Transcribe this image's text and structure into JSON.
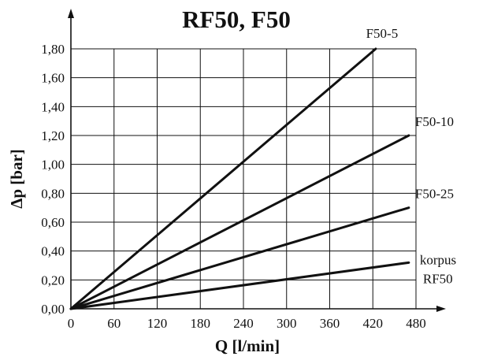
{
  "chart_data": {
    "type": "line",
    "title": "RF50, F50",
    "xlabel": "Q [l/min]",
    "ylabel": "Δp [bar]",
    "xlim": [
      0,
      480
    ],
    "ylim": [
      0,
      1.8
    ],
    "x_ticks": [
      "0",
      "60",
      "120",
      "180",
      "240",
      "300",
      "360",
      "420",
      "480"
    ],
    "y_ticks": [
      "0,00",
      "0,20",
      "0,40",
      "0,60",
      "0,80",
      "1,00",
      "1,20",
      "1,40",
      "1,60",
      "1,80"
    ],
    "grid": true,
    "series": [
      {
        "name": "F50-5",
        "label_lines": [
          "F50-5"
        ],
        "x": [
          0,
          424
        ],
        "y": [
          0,
          1.8
        ]
      },
      {
        "name": "F50-10",
        "label_lines": [
          "F50-10"
        ],
        "x": [
          0,
          470
        ],
        "y": [
          0,
          1.2
        ]
      },
      {
        "name": "F50-25",
        "label_lines": [
          "F50-25"
        ],
        "x": [
          0,
          470
        ],
        "y": [
          0,
          0.7
        ]
      },
      {
        "name": "korpus RF50",
        "label_lines": [
          "korpus",
          "RF50"
        ],
        "x": [
          0,
          470
        ],
        "y": [
          0,
          0.32
        ]
      }
    ],
    "colors": {
      "line": "#111111",
      "grid": "#111111",
      "background": "#ffffff"
    }
  }
}
